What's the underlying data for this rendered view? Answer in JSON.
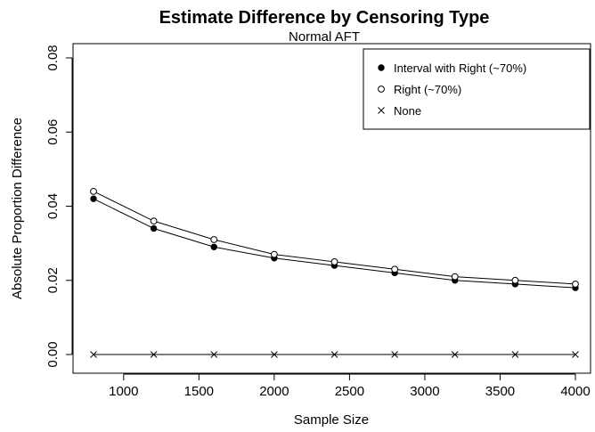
{
  "chart_data": {
    "type": "line",
    "title": "Estimate Difference by Censoring Type",
    "subtitle": "Normal AFT",
    "xlabel": "Sample Size",
    "ylabel": "Absolute Proportion Difference",
    "xlim": [
      800,
      4000
    ],
    "ylim": [
      0,
      0.08
    ],
    "xticks": [
      1000,
      1500,
      2000,
      2500,
      3000,
      3500,
      4000
    ],
    "yticks": [
      0.0,
      0.02,
      0.04,
      0.06,
      0.08
    ],
    "ytick_labels": [
      "0.00",
      "0.02",
      "0.04",
      "0.06",
      "0.08"
    ],
    "grid": false,
    "legend_position": "top-right",
    "x": [
      800,
      1200,
      1600,
      2000,
      2400,
      2800,
      3200,
      3600,
      4000
    ],
    "series": [
      {
        "name": "Interval with Right (~70%)",
        "marker": "filled-circle",
        "values": [
          0.042,
          0.034,
          0.029,
          0.026,
          0.024,
          0.022,
          0.02,
          0.019,
          0.018
        ]
      },
      {
        "name": "Right (~70%)",
        "marker": "open-circle",
        "values": [
          0.044,
          0.036,
          0.031,
          0.027,
          0.025,
          0.023,
          0.021,
          0.02,
          0.019
        ]
      },
      {
        "name": "None",
        "marker": "cross",
        "values": [
          0,
          0,
          0,
          0,
          0,
          0,
          0,
          0,
          0
        ]
      }
    ]
  }
}
